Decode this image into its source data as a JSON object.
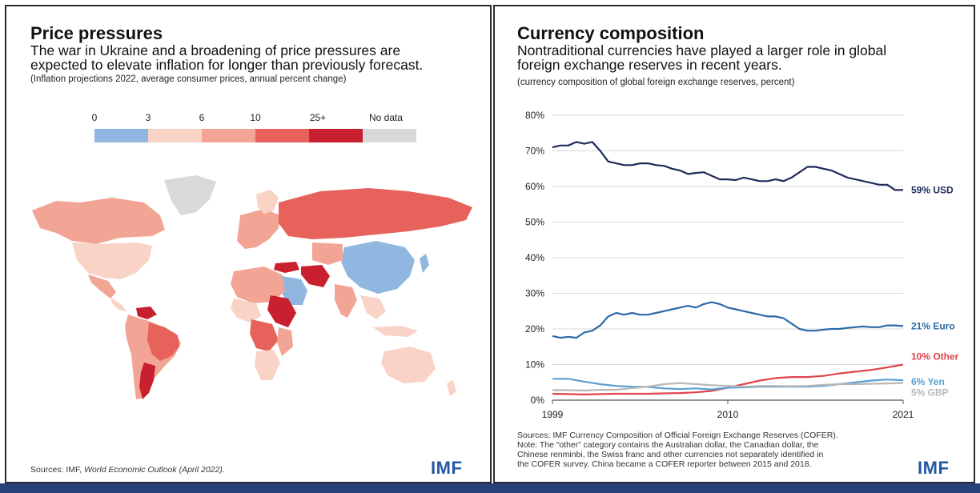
{
  "colors": {
    "usd": "#1c2b5a",
    "euro": "#2c6aa8",
    "other": "#e0434b",
    "yen": "#5a9fd4",
    "gbp": "#b8b8b8",
    "imf_blue": "#2458a6",
    "scale": [
      "#8fb7e0",
      "#f9d3c6",
      "#f2a594",
      "#e6625a",
      "#c8202f",
      "#d9d9dc"
    ]
  },
  "left_panel": {
    "title": "Price pressures",
    "subtitle_line1": "The war in Ukraine and a broadening of price pressures are",
    "subtitle_line2": "expected to elevate inflation for longer than previously forecast.",
    "note": "(Inflation projections 2022, average consumer prices, annual percent change)",
    "legend": {
      "labels": [
        "0",
        "3",
        "6",
        "10",
        "25+",
        "No data"
      ],
      "bins": [
        "0-3",
        "3-6",
        "6-10",
        "10-25",
        "25+",
        "No data"
      ]
    },
    "source_prefix": "Sources: IMF, ",
    "source_italic": "World Economic Outlook (April 2022).",
    "logo": "IMF"
  },
  "right_panel": {
    "title": "Currency composition",
    "subtitle_line1": "Nontraditional currencies have played a larger role in global",
    "subtitle_line2": "foreign exchange reserves in recent years.",
    "note": "(currency composition of global foreign exchange reserves, percent)",
    "sources": [
      "Sources: IMF Currency Composition of Official Foreign Exchange Reserves (COFER).",
      "Note: The “other” category contains the Australian dollar, the Canadian dollar, the",
      "Chinese renminbi, the Swiss franc and other currencies not separately identified in",
      "the COFER survey. China became a COFER reporter between 2015 and 2018."
    ],
    "logo": "IMF"
  },
  "chart_data": {
    "type": "line",
    "xlim": [
      1999,
      2021
    ],
    "ylim": [
      0,
      80
    ],
    "x_ticks": [
      "1999",
      "2010",
      "2021"
    ],
    "y_ticks": [
      "0%",
      "10%",
      "20%",
      "30%",
      "40%",
      "50%",
      "60%",
      "70%",
      "80%"
    ],
    "grid": "horizontal",
    "series": [
      {
        "name": "USD",
        "end_label": "59% USD",
        "color_key": "usd",
        "points": [
          [
            1999,
            71
          ],
          [
            1999.5,
            71.5
          ],
          [
            2000,
            71.5
          ],
          [
            2000.5,
            72.5
          ],
          [
            2001,
            72
          ],
          [
            2001.5,
            72.5
          ],
          [
            2002,
            70
          ],
          [
            2002.5,
            67
          ],
          [
            2003,
            66.5
          ],
          [
            2003.5,
            66
          ],
          [
            2004,
            66
          ],
          [
            2004.5,
            66.5
          ],
          [
            2005,
            66.5
          ],
          [
            2005.5,
            66
          ],
          [
            2006,
            65.8
          ],
          [
            2006.5,
            65
          ],
          [
            2007,
            64.5
          ],
          [
            2007.5,
            63.5
          ],
          [
            2008,
            63.8
          ],
          [
            2008.5,
            64
          ],
          [
            2009,
            63
          ],
          [
            2009.5,
            62
          ],
          [
            2010,
            62
          ],
          [
            2010.5,
            61.8
          ],
          [
            2011,
            62.5
          ],
          [
            2011.5,
            62
          ],
          [
            2012,
            61.5
          ],
          [
            2012.5,
            61.5
          ],
          [
            2013,
            62
          ],
          [
            2013.5,
            61.5
          ],
          [
            2014,
            62.5
          ],
          [
            2014.5,
            64
          ],
          [
            2015,
            65.5
          ],
          [
            2015.5,
            65.5
          ],
          [
            2016,
            65
          ],
          [
            2016.5,
            64.5
          ],
          [
            2017,
            63.5
          ],
          [
            2017.5,
            62.5
          ],
          [
            2018,
            62
          ],
          [
            2018.5,
            61.5
          ],
          [
            2019,
            61
          ],
          [
            2019.5,
            60.5
          ],
          [
            2020,
            60.5
          ],
          [
            2020.5,
            59
          ],
          [
            2021,
            59
          ]
        ]
      },
      {
        "name": "Euro",
        "end_label": "21% Euro",
        "color_key": "euro",
        "points": [
          [
            1999,
            18
          ],
          [
            1999.5,
            17.5
          ],
          [
            2000,
            17.8
          ],
          [
            2000.5,
            17.5
          ],
          [
            2001,
            19
          ],
          [
            2001.5,
            19.5
          ],
          [
            2002,
            21
          ],
          [
            2002.5,
            23.5
          ],
          [
            2003,
            24.5
          ],
          [
            2003.5,
            24
          ],
          [
            2004,
            24.5
          ],
          [
            2004.5,
            24
          ],
          [
            2005,
            24
          ],
          [
            2005.5,
            24.5
          ],
          [
            2006,
            25
          ],
          [
            2006.5,
            25.5
          ],
          [
            2007,
            26
          ],
          [
            2007.5,
            26.5
          ],
          [
            2008,
            26
          ],
          [
            2008.5,
            27
          ],
          [
            2009,
            27.5
          ],
          [
            2009.5,
            27
          ],
          [
            2010,
            26
          ],
          [
            2010.5,
            25.5
          ],
          [
            2011,
            25
          ],
          [
            2011.5,
            24.5
          ],
          [
            2012,
            24
          ],
          [
            2012.5,
            23.5
          ],
          [
            2013,
            23.5
          ],
          [
            2013.5,
            23
          ],
          [
            2014,
            21.5
          ],
          [
            2014.5,
            20
          ],
          [
            2015,
            19.5
          ],
          [
            2015.5,
            19.5
          ],
          [
            2016,
            19.8
          ],
          [
            2016.5,
            20
          ],
          [
            2017,
            20
          ],
          [
            2017.5,
            20.3
          ],
          [
            2018,
            20.5
          ],
          [
            2018.5,
            20.7
          ],
          [
            2019,
            20.5
          ],
          [
            2019.5,
            20.5
          ],
          [
            2020,
            21
          ],
          [
            2020.5,
            21
          ],
          [
            2021,
            20.8
          ]
        ]
      },
      {
        "name": "Other",
        "end_label": "10% Other",
        "color_key": "other",
        "points": [
          [
            1999,
            1.8
          ],
          [
            2000,
            1.7
          ],
          [
            2001,
            1.6
          ],
          [
            2002,
            1.7
          ],
          [
            2003,
            1.8
          ],
          [
            2004,
            1.8
          ],
          [
            2005,
            1.8
          ],
          [
            2006,
            1.9
          ],
          [
            2007,
            2
          ],
          [
            2008,
            2.2
          ],
          [
            2009,
            2.6
          ],
          [
            2010,
            3.5
          ],
          [
            2011,
            4.5
          ],
          [
            2012,
            5.5
          ],
          [
            2013,
            6.2
          ],
          [
            2014,
            6.5
          ],
          [
            2015,
            6.5
          ],
          [
            2016,
            6.8
          ],
          [
            2017,
            7.5
          ],
          [
            2018,
            8
          ],
          [
            2019,
            8.5
          ],
          [
            2020,
            9.2
          ],
          [
            2021,
            10
          ]
        ]
      },
      {
        "name": "Yen",
        "end_label": "6% Yen",
        "color_key": "yen",
        "points": [
          [
            1999,
            6
          ],
          [
            2000,
            6
          ],
          [
            2001,
            5.2
          ],
          [
            2002,
            4.5
          ],
          [
            2003,
            4
          ],
          [
            2004,
            3.8
          ],
          [
            2005,
            3.7
          ],
          [
            2006,
            3.3
          ],
          [
            2007,
            3.1
          ],
          [
            2008,
            3.3
          ],
          [
            2009,
            3
          ],
          [
            2010,
            3.5
          ],
          [
            2011,
            3.6
          ],
          [
            2012,
            3.8
          ],
          [
            2013,
            3.8
          ],
          [
            2014,
            3.8
          ],
          [
            2015,
            3.8
          ],
          [
            2016,
            4
          ],
          [
            2017,
            4.5
          ],
          [
            2018,
            5
          ],
          [
            2019,
            5.5
          ],
          [
            2020,
            5.8
          ],
          [
            2021,
            5.6
          ]
        ]
      },
      {
        "name": "GBP",
        "end_label": "5% GBP",
        "color_key": "gbp",
        "points": [
          [
            1999,
            2.8
          ],
          [
            2000,
            2.8
          ],
          [
            2001,
            2.7
          ],
          [
            2002,
            2.9
          ],
          [
            2003,
            2.9
          ],
          [
            2004,
            3.4
          ],
          [
            2005,
            3.8
          ],
          [
            2006,
            4.5
          ],
          [
            2007,
            4.8
          ],
          [
            2008,
            4.5
          ],
          [
            2009,
            4.2
          ],
          [
            2010,
            4
          ],
          [
            2011,
            3.8
          ],
          [
            2012,
            4
          ],
          [
            2013,
            4
          ],
          [
            2014,
            3.9
          ],
          [
            2015,
            4
          ],
          [
            2016,
            4.3
          ],
          [
            2017,
            4.5
          ],
          [
            2018,
            4.5
          ],
          [
            2019,
            4.6
          ],
          [
            2020,
            4.7
          ],
          [
            2021,
            4.8
          ]
        ]
      }
    ]
  }
}
